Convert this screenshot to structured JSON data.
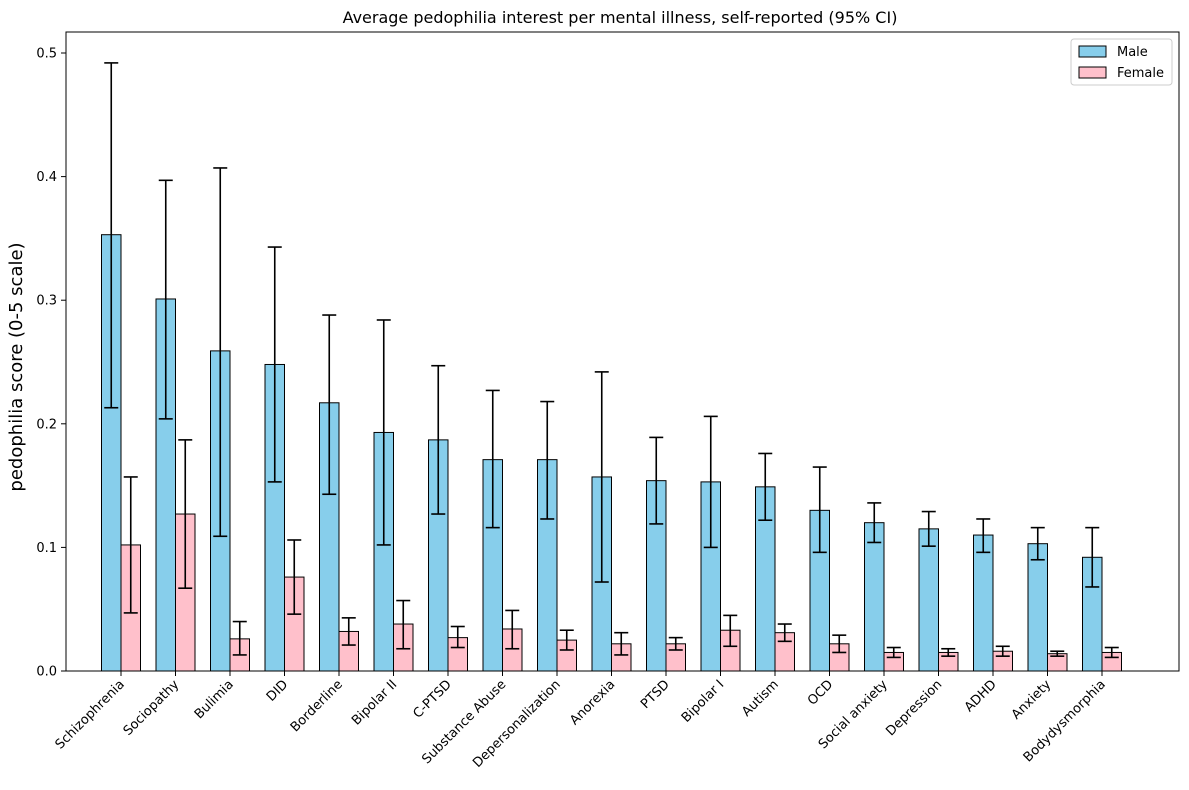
{
  "chart_data": {
    "type": "bar",
    "title": "Average pedophilia interest per mental illness, self-reported (95% CI)",
    "xlabel": "",
    "ylabel": "pedophilia score (0-5 scale)",
    "ylim": [
      0,
      0.517
    ],
    "yticks": [
      0.0,
      0.1,
      0.2,
      0.3,
      0.4,
      0.5
    ],
    "ytick_labels": [
      "0.0",
      "0.1",
      "0.2",
      "0.3",
      "0.4",
      "0.5"
    ],
    "grid": false,
    "legend_position": "top-right",
    "categories": [
      "Schizophrenia",
      "Sociopathy",
      "Bulimia",
      "DID",
      "Borderline",
      "Bipolar II",
      "C-PTSD",
      "Substance Abuse",
      "Depersonalization",
      "Anorexia",
      "PTSD",
      "Bipolar I",
      "Autism",
      "OCD",
      "Social anxiety",
      "Depression",
      "ADHD",
      "Anxiety",
      "Bodydysmorphia"
    ],
    "series": [
      {
        "name": "Male",
        "color": "#87CEEB",
        "values": [
          0.353,
          0.301,
          0.259,
          0.248,
          0.217,
          0.193,
          0.187,
          0.171,
          0.171,
          0.157,
          0.154,
          0.153,
          0.149,
          0.13,
          0.12,
          0.115,
          0.11,
          0.103,
          0.092
        ],
        "ci_low": [
          0.213,
          0.204,
          0.109,
          0.153,
          0.143,
          0.102,
          0.127,
          0.116,
          0.123,
          0.072,
          0.119,
          0.1,
          0.122,
          0.096,
          0.104,
          0.101,
          0.096,
          0.09,
          0.068
        ],
        "ci_high": [
          0.492,
          0.397,
          0.407,
          0.343,
          0.288,
          0.284,
          0.247,
          0.227,
          0.218,
          0.242,
          0.189,
          0.206,
          0.176,
          0.165,
          0.136,
          0.129,
          0.123,
          0.116,
          0.116
        ]
      },
      {
        "name": "Female",
        "color": "#FFC0CB",
        "values": [
          0.102,
          0.127,
          0.026,
          0.076,
          0.032,
          0.038,
          0.027,
          0.034,
          0.025,
          0.022,
          0.022,
          0.033,
          0.031,
          0.022,
          0.015,
          0.015,
          0.016,
          0.014,
          0.015
        ],
        "ci_low": [
          0.047,
          0.067,
          0.013,
          0.046,
          0.021,
          0.018,
          0.019,
          0.018,
          0.017,
          0.013,
          0.017,
          0.02,
          0.024,
          0.015,
          0.011,
          0.012,
          0.012,
          0.012,
          0.011
        ],
        "ci_high": [
          0.157,
          0.187,
          0.04,
          0.106,
          0.043,
          0.057,
          0.036,
          0.049,
          0.033,
          0.031,
          0.027,
          0.045,
          0.038,
          0.029,
          0.019,
          0.018,
          0.02,
          0.016,
          0.019
        ]
      }
    ]
  }
}
